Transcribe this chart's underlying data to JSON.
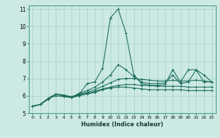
{
  "title": "",
  "xlabel": "Humidex (Indice chaleur)",
  "ylabel": "",
  "xlim": [
    -0.5,
    23.5
  ],
  "ylim": [
    5.0,
    11.2
  ],
  "yticks": [
    5,
    6,
    7,
    8,
    9,
    10,
    11
  ],
  "xticks": [
    0,
    1,
    2,
    3,
    4,
    5,
    6,
    7,
    8,
    9,
    10,
    11,
    12,
    13,
    14,
    15,
    16,
    17,
    18,
    19,
    20,
    21,
    22,
    23
  ],
  "background_color": "#cce9e4",
  "grid_color": "#aad4cc",
  "line_color": "#1a6b5a",
  "lines": [
    [
      5.4,
      5.5,
      5.8,
      6.1,
      6.0,
      5.9,
      6.1,
      6.7,
      6.8,
      7.6,
      10.5,
      11.0,
      9.6,
      7.2,
      6.7,
      6.6,
      6.6,
      6.65,
      7.5,
      6.8,
      7.5,
      7.5,
      6.8,
      6.8
    ],
    [
      5.4,
      5.5,
      5.8,
      6.1,
      6.0,
      5.9,
      6.15,
      6.3,
      6.5,
      6.8,
      7.2,
      7.8,
      7.5,
      7.1,
      6.8,
      6.7,
      6.7,
      6.75,
      7.2,
      6.7,
      6.8,
      7.5,
      7.2,
      6.8
    ],
    [
      5.4,
      5.5,
      5.85,
      6.1,
      6.05,
      5.95,
      6.1,
      6.2,
      6.35,
      6.55,
      6.75,
      6.95,
      7.0,
      7.0,
      6.95,
      6.9,
      6.85,
      6.85,
      6.9,
      6.85,
      6.85,
      6.9,
      6.85,
      6.8
    ],
    [
      5.4,
      5.5,
      5.85,
      6.1,
      6.0,
      5.9,
      6.05,
      6.15,
      6.25,
      6.4,
      6.5,
      6.6,
      6.65,
      6.65,
      6.6,
      6.6,
      6.55,
      6.55,
      6.55,
      6.55,
      6.5,
      6.5,
      6.5,
      6.5
    ],
    [
      5.4,
      5.5,
      5.85,
      6.0,
      5.95,
      5.9,
      6.0,
      6.1,
      6.2,
      6.35,
      6.45,
      6.5,
      6.5,
      6.45,
      6.4,
      6.35,
      6.35,
      6.35,
      6.35,
      6.35,
      6.3,
      6.3,
      6.3,
      6.3
    ]
  ]
}
